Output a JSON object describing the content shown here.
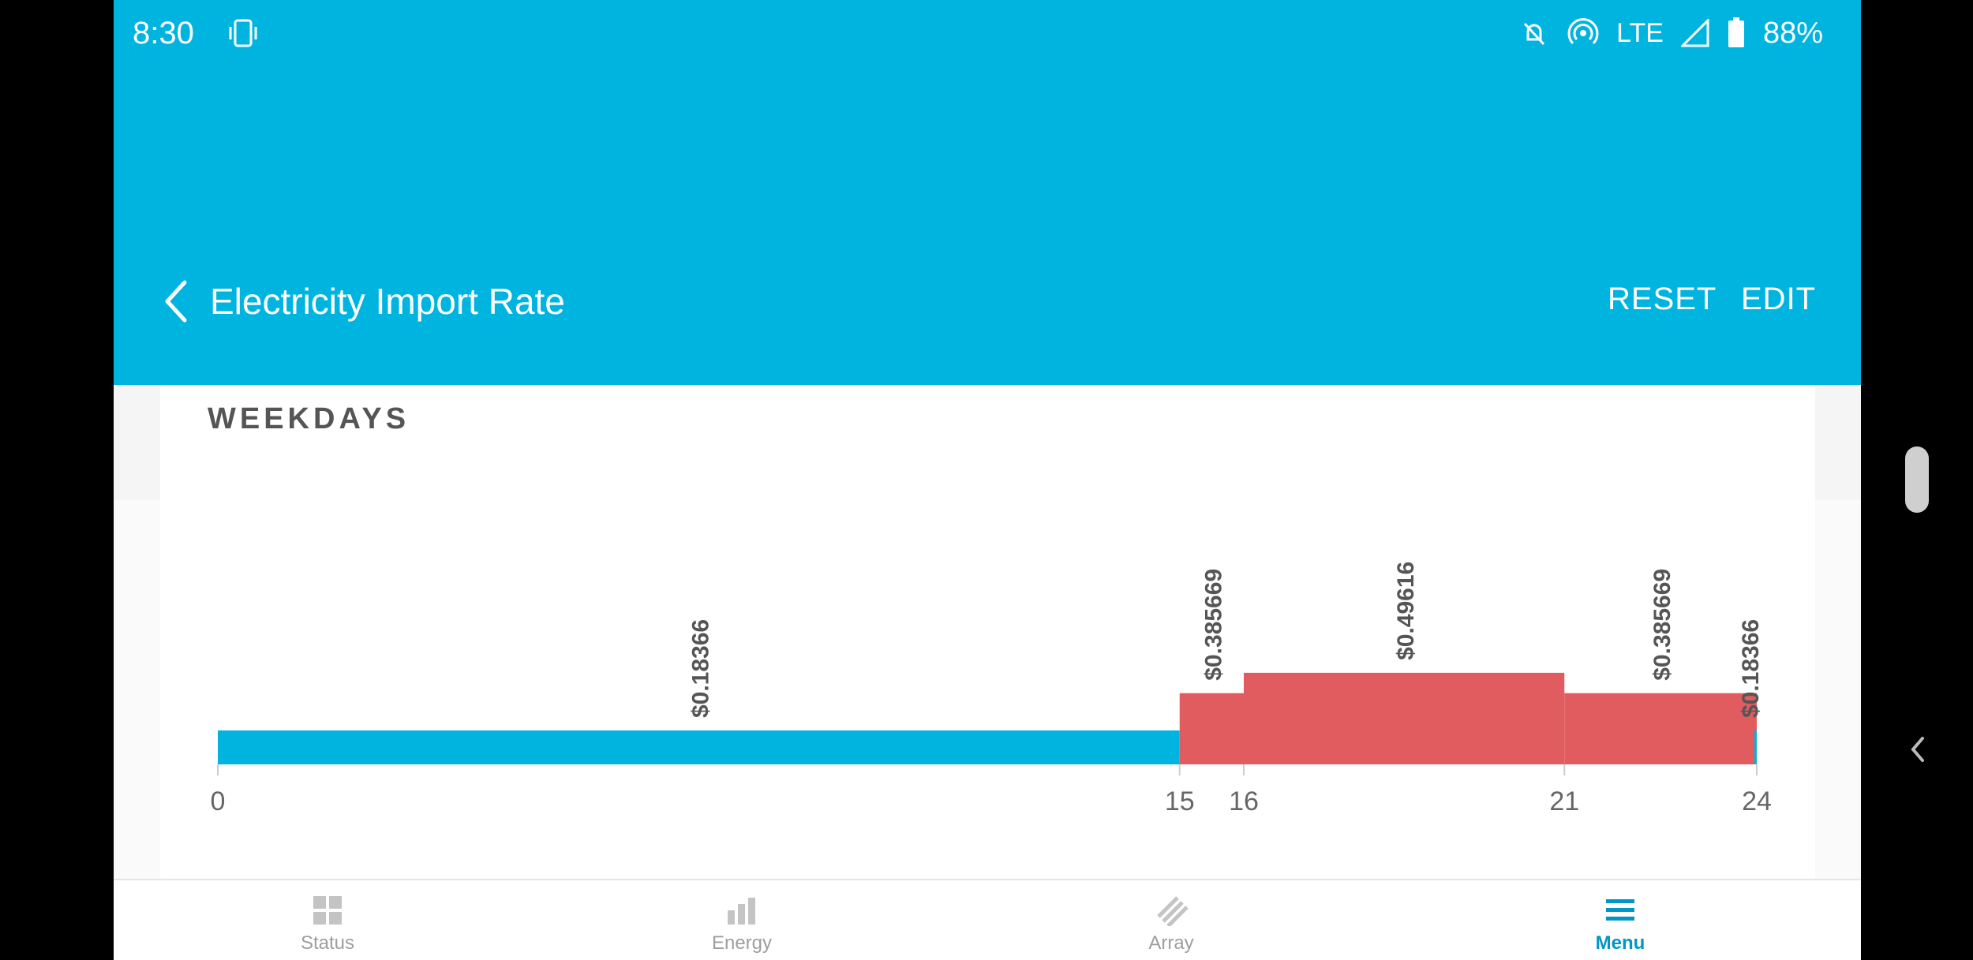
{
  "status_bar": {
    "time": "8:30",
    "battery": "88%",
    "network": "LTE"
  },
  "app_bar": {
    "title": "Electricity Import Rate",
    "reset_label": "RESET",
    "edit_label": "EDIT"
  },
  "section": {
    "title": "WEEKDAYS"
  },
  "colors": {
    "accent": "#00b4e0",
    "offpeak": "#00b4e0",
    "peak": "#e05c5f"
  },
  "chart_data": {
    "type": "bar",
    "x_ticks": [
      "0",
      "15",
      "16",
      "21",
      "24"
    ],
    "xlim": [
      0,
      24
    ],
    "segments": [
      {
        "start": 0,
        "end": 15,
        "value": 0.18366,
        "label": "$0.18366",
        "color": "#00b4e0"
      },
      {
        "start": 15,
        "end": 16,
        "value": 0.385669,
        "label": "$0.385669",
        "color": "#e05c5f"
      },
      {
        "start": 16,
        "end": 21,
        "value": 0.49616,
        "label": "$0.49616",
        "color": "#e05c5f"
      },
      {
        "start": 21,
        "end": 24,
        "value": 0.385669,
        "label": "$0.385669",
        "color": "#e05c5f"
      }
    ],
    "tail_label": "$0.18366"
  },
  "bottom_nav": {
    "items": [
      {
        "label": "Status",
        "icon": "grid-icon"
      },
      {
        "label": "Energy",
        "icon": "bar-chart-icon"
      },
      {
        "label": "Array",
        "icon": "solar-array-icon"
      },
      {
        "label": "Menu",
        "icon": "hamburger-menu-icon"
      }
    ],
    "active": "Menu"
  }
}
